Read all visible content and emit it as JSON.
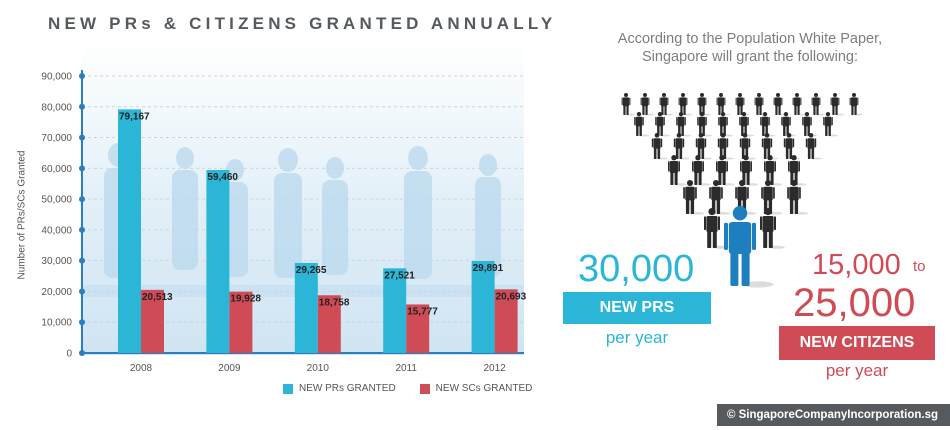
{
  "title": "NEW PRs & CITIZENS GRANTED ANNUALLY",
  "chart_data": {
    "type": "bar",
    "categories": [
      "2008",
      "2009",
      "2010",
      "2011",
      "2012"
    ],
    "series": [
      {
        "name": "NEW PRs GRANTED",
        "values": [
          79167,
          59460,
          29265,
          27521,
          29891
        ],
        "labels": [
          "79,167",
          "59,460",
          "29,265",
          "27,521",
          "29,891"
        ],
        "color": "#2bb6d8"
      },
      {
        "name": "NEW SCs GRANTED",
        "values": [
          20513,
          19928,
          18758,
          15777,
          20693
        ],
        "labels": [
          "20,513",
          "19,928",
          "18,758",
          "15,777",
          "20,693"
        ],
        "color": "#cf4b56"
      }
    ],
    "ylabel": "Number of PRs/SCs Granted",
    "xlabel": "",
    "ylim": [
      0,
      90000
    ],
    "yticks": [
      "0",
      "10,000",
      "20,000",
      "30,000",
      "40,000",
      "50,000",
      "60,000",
      "70,000",
      "80,000",
      "90,000"
    ],
    "grid": true,
    "legend_position": "bottom"
  },
  "infographic": {
    "intro_line1": "According to the Population White Paper,",
    "intro_line2": "Singapore will grant the following:",
    "pr_number": "30,000",
    "pr_label": "NEW PRS",
    "pr_per": "per year",
    "sc_number1": "15,000",
    "sc_to": "to",
    "sc_number2": "25,000",
    "sc_label": "NEW CITIZENS",
    "sc_per": "per year",
    "people_color": "#2b2b2b",
    "highlight_color": "#1e7fc0"
  },
  "credit": "© SingaporeCompanyIncorporation.sg"
}
